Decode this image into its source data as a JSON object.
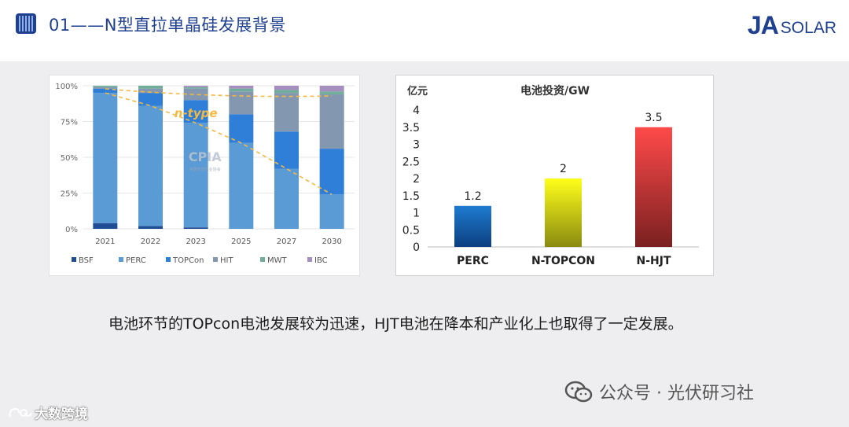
{
  "header": {
    "title": "01——N型直拉单晶硅发展背景",
    "brand_ja": "JA",
    "brand_solar": "SOLAR"
  },
  "chart_data": [
    {
      "type": "bar",
      "stacked": true,
      "categories": [
        "2021",
        "2022",
        "2023",
        "2025",
        "2027",
        "2030"
      ],
      "yticks": [
        "100%",
        "75%",
        "50%",
        "25%",
        "0%"
      ],
      "ylim": [
        0,
        100
      ],
      "series": [
        {
          "name": "BSF",
          "color": "#1f4e96",
          "values": [
            4,
            2,
            1,
            0,
            0,
            0
          ]
        },
        {
          "name": "PERC",
          "color": "#5b9bd5",
          "values": [
            91,
            84,
            73,
            60,
            42,
            24
          ]
        },
        {
          "name": "TOPCon",
          "color": "#2f7fd8",
          "values": [
            3,
            9,
            16,
            20,
            26,
            32
          ]
        },
        {
          "name": "HIT",
          "color": "#8497b0",
          "values": [
            1,
            3,
            8,
            16,
            27,
            38
          ]
        },
        {
          "name": "MWT",
          "color": "#70ad9a",
          "values": [
            1,
            2,
            1,
            2,
            2,
            2
          ]
        },
        {
          "name": "IBC",
          "color": "#a58fbf",
          "values": [
            0,
            0,
            1,
            2,
            3,
            4
          ]
        }
      ],
      "annotation": "n-type",
      "watermark": "CPIA",
      "watermark_sub": "中国光伏行业协会",
      "legend_position": "bottom"
    },
    {
      "type": "bar",
      "title": "电池投资/GW",
      "ylabel": "亿元",
      "categories": [
        "PERC",
        "N-TOPCON",
        "N-HJT"
      ],
      "values": [
        1.2,
        2,
        3.5
      ],
      "labels": [
        "1.2",
        "2",
        "3.5"
      ],
      "yticks": [
        "4",
        "3.5",
        "3",
        "2.5",
        "2",
        "1.5",
        "1",
        "0.5",
        "0"
      ],
      "ylim": [
        0,
        4
      ],
      "grid": false,
      "colors": [
        [
          "#1e7bd0",
          "#0d3f80"
        ],
        [
          "#ffff1a",
          "#8a8a10"
        ],
        [
          "#ff4a4a",
          "#7a2020"
        ]
      ]
    }
  ],
  "caption": "电池环节的TOPcon电池发展较为迅速，HJT电池在降本和产业化上也取得了一定发展。",
  "watermarks": {
    "left": "大数跨境",
    "right": "公众号 · 光伏研习社"
  }
}
